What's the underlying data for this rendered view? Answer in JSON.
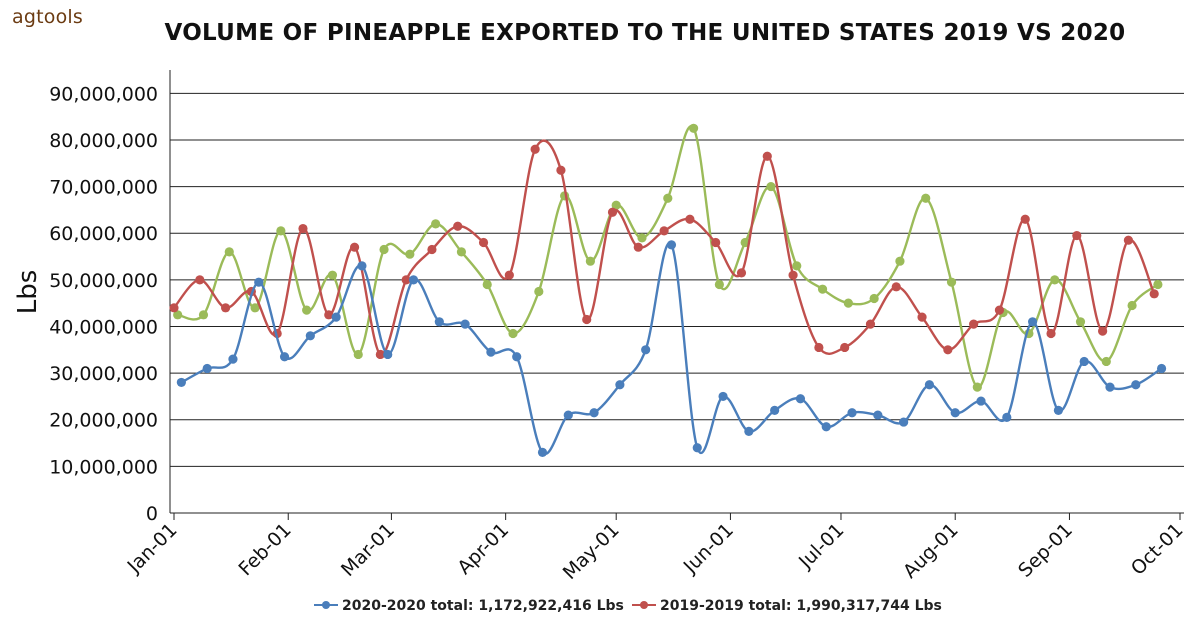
{
  "brand": "agtools",
  "chart_data": {
    "type": "line",
    "title": "VOLUME OF PINEAPPLE EXPORTED TO THE UNITED STATES 2019 VS 2020",
    "ylabel": "Lbs",
    "xlabel": "",
    "ylim": [
      0,
      95000000
    ],
    "y_ticks": [
      0,
      10000000,
      20000000,
      30000000,
      40000000,
      50000000,
      60000000,
      70000000,
      80000000,
      90000000
    ],
    "y_tick_labels": [
      "0",
      "10,000,000",
      "20,000,000",
      "30,000,000",
      "40,000,000",
      "50,000,000",
      "60,000,000",
      "70,000,000",
      "80,000,000",
      "90,000,000"
    ],
    "x_ticks": [
      "2019-01-01",
      "2019-02-01",
      "2019-03-01",
      "2019-04-01",
      "2019-05-01",
      "2019-06-01",
      "2019-07-01",
      "2019-08-01",
      "2019-09-01",
      "2019-10-01"
    ],
    "x_tick_labels": [
      "Jan-01",
      "Feb-01",
      "Mar-01",
      "Apr-01",
      "May-01",
      "Jun-01",
      "Jul-01",
      "Aug-01",
      "Sep-01",
      "Oct-01"
    ],
    "grid": true,
    "legend_position": "bottom",
    "series": [
      {
        "name": "2020-2020 total: 1,172,922,416 Lbs",
        "color": "#4a7ebb",
        "x": [
          "2019-01-03",
          "2019-01-10",
          "2019-01-17",
          "2019-01-24",
          "2019-01-31",
          "2019-02-07",
          "2019-02-14",
          "2019-02-21",
          "2019-02-28",
          "2019-03-07",
          "2019-03-14",
          "2019-03-21",
          "2019-03-28",
          "2019-04-04",
          "2019-04-11",
          "2019-04-18",
          "2019-04-25",
          "2019-05-02",
          "2019-05-09",
          "2019-05-16",
          "2019-05-23",
          "2019-05-30",
          "2019-06-06",
          "2019-06-13",
          "2019-06-20",
          "2019-06-27",
          "2019-07-04",
          "2019-07-11",
          "2019-07-18",
          "2019-07-25",
          "2019-08-01",
          "2019-08-08",
          "2019-08-15",
          "2019-08-22",
          "2019-08-29",
          "2019-09-05",
          "2019-09-12",
          "2019-09-19",
          "2019-09-26"
        ],
        "values": [
          28000000,
          31000000,
          33000000,
          49500000,
          33500000,
          38000000,
          42000000,
          53000000,
          34000000,
          50000000,
          41000000,
          40500000,
          34500000,
          33500000,
          13000000,
          21000000,
          21500000,
          27500000,
          35000000,
          57500000,
          14000000,
          25000000,
          17500000,
          22000000,
          24500000,
          18500000,
          21500000,
          21000000,
          19500000,
          27500000,
          21500000,
          24000000,
          20500000,
          41000000,
          22000000,
          32500000,
          27000000,
          27500000,
          31000000
        ]
      },
      {
        "name": "2019-2019 total: 1,990,317,744 Lbs",
        "color": "#c0504d",
        "x": [
          "2019-01-01",
          "2019-01-08",
          "2019-01-15",
          "2019-01-22",
          "2019-01-29",
          "2019-02-05",
          "2019-02-12",
          "2019-02-19",
          "2019-02-26",
          "2019-03-05",
          "2019-03-12",
          "2019-03-19",
          "2019-03-26",
          "2019-04-02",
          "2019-04-09",
          "2019-04-16",
          "2019-04-23",
          "2019-04-30",
          "2019-05-07",
          "2019-05-14",
          "2019-05-21",
          "2019-05-28",
          "2019-06-04",
          "2019-06-11",
          "2019-06-18",
          "2019-06-25",
          "2019-07-02",
          "2019-07-09",
          "2019-07-16",
          "2019-07-23",
          "2019-07-30",
          "2019-08-06",
          "2019-08-13",
          "2019-08-20",
          "2019-08-27",
          "2019-09-03",
          "2019-09-10",
          "2019-09-17",
          "2019-09-24"
        ],
        "values": [
          44000000,
          50000000,
          44000000,
          47500000,
          38500000,
          61000000,
          42500000,
          57000000,
          34000000,
          50000000,
          56500000,
          61500000,
          58000000,
          51000000,
          78000000,
          73500000,
          41500000,
          64500000,
          57000000,
          60500000,
          63000000,
          58000000,
          51500000,
          76500000,
          51000000,
          35500000,
          35500000,
          40500000,
          48500000,
          42000000,
          35000000,
          40500000,
          43500000,
          63000000,
          38500000,
          59500000,
          39000000,
          58500000,
          47000000
        ]
      },
      {
        "name": "",
        "color": "#9bbb59",
        "x": [
          "2019-01-02",
          "2019-01-09",
          "2019-01-16",
          "2019-01-23",
          "2019-01-30",
          "2019-02-06",
          "2019-02-13",
          "2019-02-20",
          "2019-02-27",
          "2019-03-06",
          "2019-03-13",
          "2019-03-20",
          "2019-03-27",
          "2019-04-03",
          "2019-04-10",
          "2019-04-17",
          "2019-04-24",
          "2019-05-01",
          "2019-05-08",
          "2019-05-15",
          "2019-05-22",
          "2019-05-29",
          "2019-06-05",
          "2019-06-12",
          "2019-06-19",
          "2019-06-26",
          "2019-07-03",
          "2019-07-10",
          "2019-07-17",
          "2019-07-24",
          "2019-07-31",
          "2019-08-07",
          "2019-08-14",
          "2019-08-21",
          "2019-08-28",
          "2019-09-04",
          "2019-09-11",
          "2019-09-18",
          "2019-09-25"
        ],
        "values": [
          42500000,
          42500000,
          56000000,
          44000000,
          60500000,
          43500000,
          51000000,
          34000000,
          56500000,
          55500000,
          62000000,
          56000000,
          49000000,
          38500000,
          47500000,
          68000000,
          54000000,
          66000000,
          59000000,
          67500000,
          82500000,
          49000000,
          58000000,
          70000000,
          53000000,
          48000000,
          45000000,
          46000000,
          54000000,
          67500000,
          49500000,
          27000000,
          43000000,
          38500000,
          50000000,
          41000000,
          32500000,
          44500000,
          49000000
        ]
      }
    ]
  }
}
